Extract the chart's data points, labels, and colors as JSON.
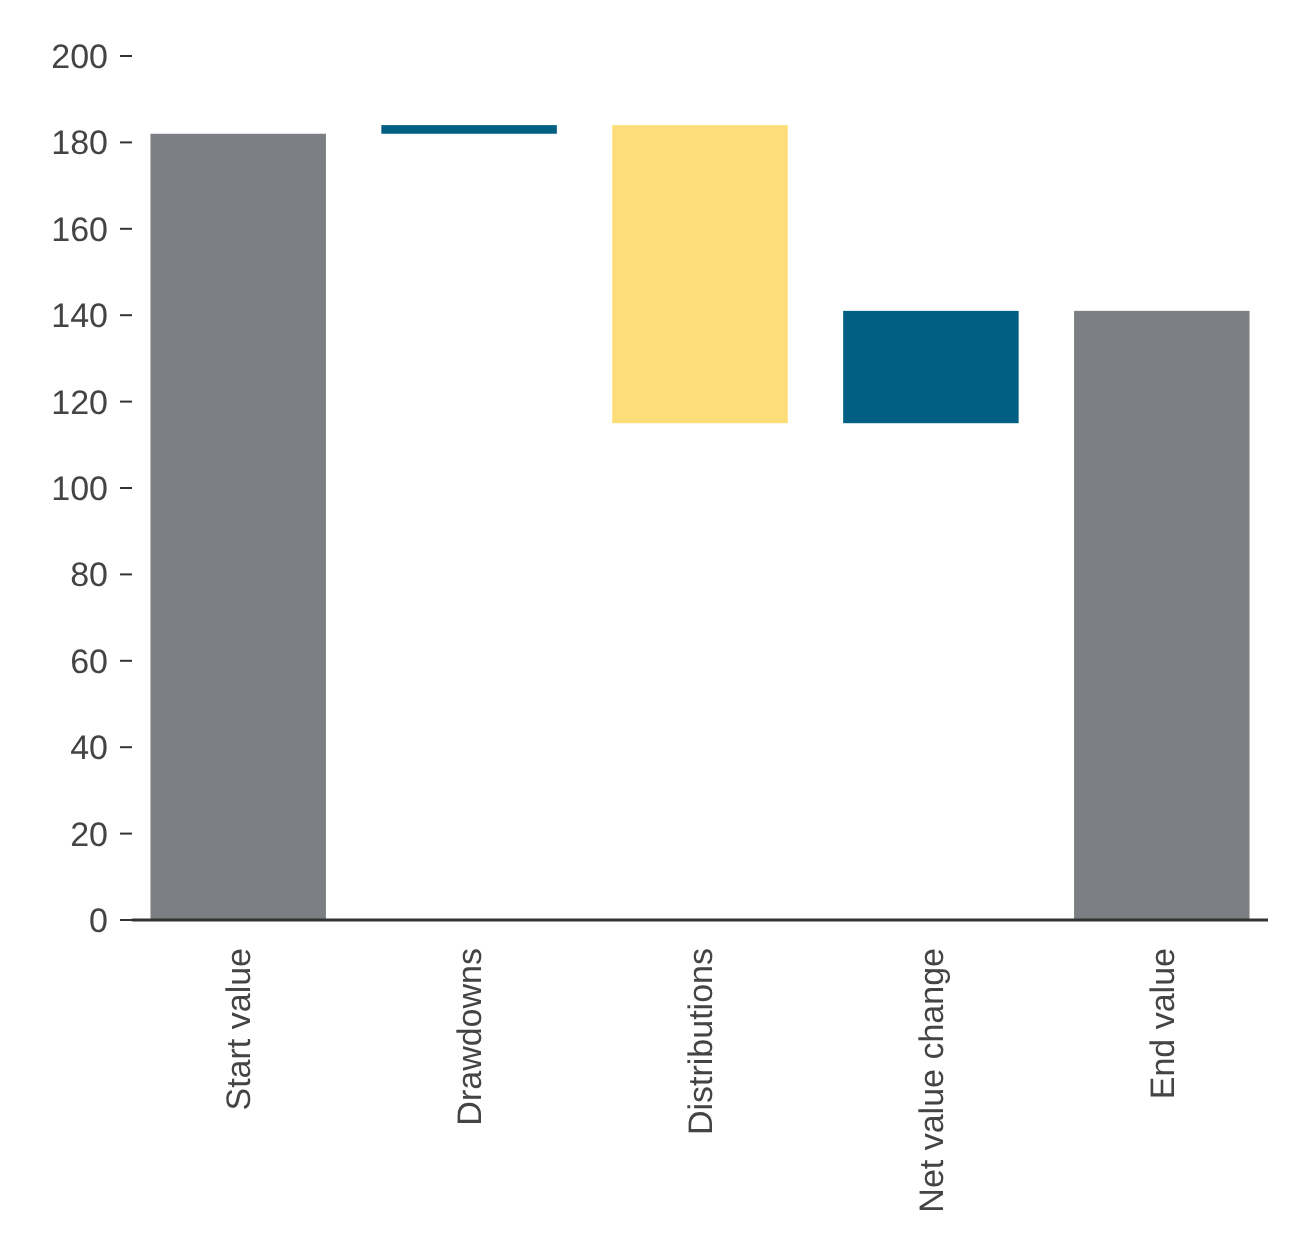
{
  "chart_data": {
    "type": "bar",
    "categories": [
      "Start value",
      "Drawdowns",
      "Distributions",
      "Net value change",
      "End value"
    ],
    "values": [
      182,
      2,
      -69,
      26,
      141
    ],
    "base": [
      0,
      182,
      184,
      115,
      0
    ],
    "colors": [
      "#7b7f83",
      "#005f83",
      "#fddd77",
      "#005f83",
      "#7b7f83"
    ],
    "ylim": [
      0,
      200
    ],
    "yticks": [
      0,
      20,
      40,
      60,
      80,
      100,
      120,
      140,
      160,
      180,
      200
    ],
    "grid": false
  }
}
